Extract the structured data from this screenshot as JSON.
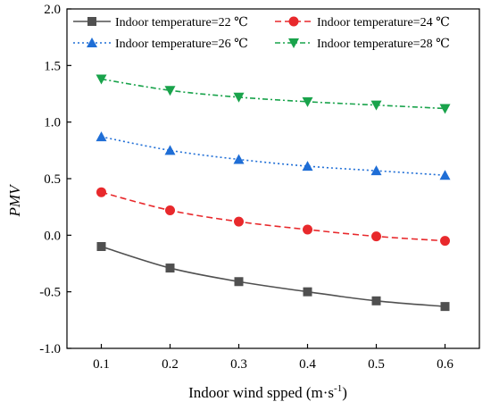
{
  "chart_data": {
    "type": "line",
    "xlabel": "Indoor wind spped (m·s",
    "xlabel_superscript": "-1",
    "xlabel_suffix": ")",
    "ylabel": "PMV",
    "xlim": [
      0.05,
      0.65
    ],
    "ylim": [
      -1.0,
      2.0
    ],
    "x_ticks": [
      "0.1",
      "0.2",
      "0.3",
      "0.4",
      "0.5",
      "0.6"
    ],
    "y_ticks": [
      "-1.0",
      "-0.5",
      "0.0",
      "0.5",
      "1.0",
      "1.5",
      "2.0"
    ],
    "x": [
      0.1,
      0.2,
      0.3,
      0.4,
      0.5,
      0.6
    ],
    "grid": false,
    "legend_placement": "top",
    "series": [
      {
        "name": "Indoor temperature=22 ℃",
        "values": [
          -0.1,
          -0.29,
          -0.41,
          -0.5,
          -0.58,
          -0.63
        ],
        "color": "#505050",
        "marker": "square",
        "dash": "solid"
      },
      {
        "name": "Indoor temperature=24 ℃",
        "values": [
          0.38,
          0.22,
          0.12,
          0.05,
          -0.01,
          -0.05
        ],
        "color": "#e8292c",
        "marker": "circle",
        "dash": "dashed"
      },
      {
        "name": "Indoor temperature=26 ℃",
        "values": [
          0.87,
          0.75,
          0.67,
          0.61,
          0.57,
          0.53
        ],
        "color": "#1f6ed6",
        "marker": "triangle-up",
        "dash": "dotted"
      },
      {
        "name": "Indoor temperature=28 ℃",
        "values": [
          1.38,
          1.28,
          1.22,
          1.18,
          1.15,
          1.12
        ],
        "color": "#19a34b",
        "marker": "triangle-down",
        "dash": "dashdot"
      }
    ]
  }
}
